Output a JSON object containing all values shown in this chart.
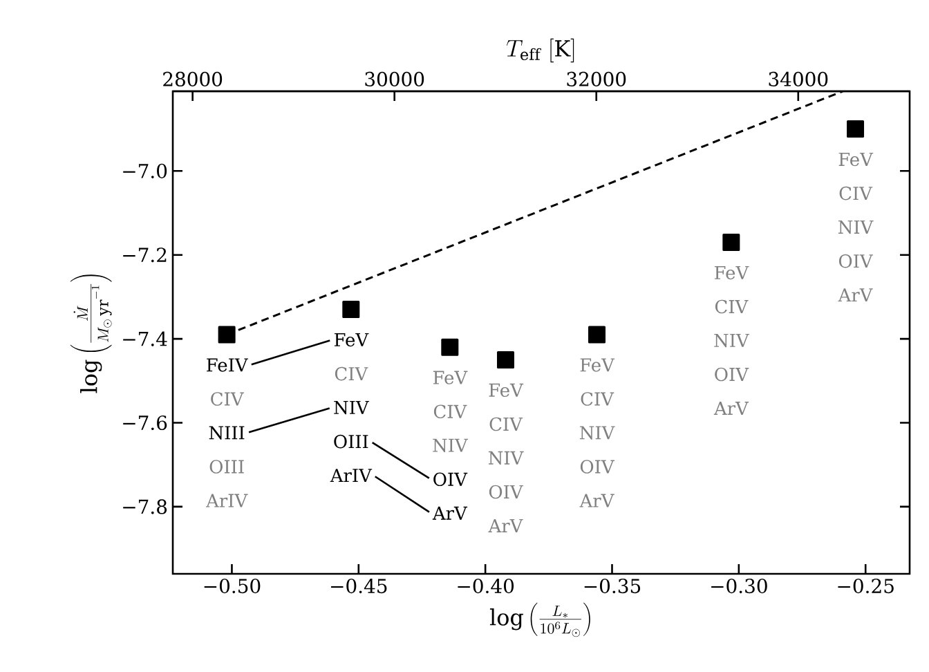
{
  "chart_data": {
    "type": "scatter",
    "xlabel": "\\log\\left(\\frac{L_*}{10^6 L_\\odot}\\right)",
    "ylabel": "\\log\\left(\\frac{\\dot{M}}{M_\\odot\\,\\mathrm{yr}^{-1}}\\right)",
    "x2label": "T_{\\mathrm{eff}}\\ \\mathrm{[K]}",
    "x": [
      -0.502,
      -0.453,
      -0.414,
      -0.392,
      -0.356,
      -0.303,
      -0.254
    ],
    "marker": "square",
    "series": [
      {
        "color": "#000000",
        "values": [
          -7.39,
          -7.33,
          -7.42,
          -7.45,
          -7.39,
          -7.17,
          -6.9
        ]
      },
      {
        "type": "line",
        "marker": "none",
        "line_style": "dashed",
        "color": "#000000",
        "x": [
          -0.502,
          -0.259
        ],
        "values": [
          -7.39,
          -6.81
        ]
      }
    ],
    "xlim": [
      -0.5233,
      -0.2326
    ],
    "ylim": [
      -7.96,
      -6.81
    ],
    "xticks": [
      {
        "value": -0.5,
        "label": "−0.50"
      },
      {
        "value": -0.45,
        "label": "−0.45"
      },
      {
        "value": -0.4,
        "label": "−0.40"
      },
      {
        "value": -0.35,
        "label": "−0.35"
      },
      {
        "value": -0.3,
        "label": "−0.30"
      },
      {
        "value": -0.25,
        "label": "−0.25"
      }
    ],
    "yticks": [
      {
        "value": -7.8,
        "label": "−7.8"
      },
      {
        "value": -7.6,
        "label": "−7.6"
      },
      {
        "value": -7.4,
        "label": "−7.4"
      },
      {
        "value": -7.2,
        "label": "−7.2"
      },
      {
        "value": -7.0,
        "label": "−7.0"
      }
    ],
    "x2lim": [
      27804,
      35104
    ],
    "x2ticks": [
      28000,
      30000,
      32000,
      34000
    ],
    "annotations": [
      "FeIV",
      "CIV",
      "NIII",
      "OIII",
      "ArIV",
      "FeV",
      "CIV",
      "NIV",
      "OIII",
      "ArIV",
      "FeV",
      "CIV",
      "NIV",
      "OIV",
      "ArV",
      "FeV",
      "CIV",
      "NIV",
      "OIV",
      "ArV",
      "FeV",
      "CIV",
      "NIV",
      "OIV",
      "ArV",
      "FeV",
      "CIV",
      "NIV",
      "OIV",
      "ArV",
      "FeV",
      "CIV",
      "NIV",
      "OIV",
      "ArV"
    ]
  }
}
